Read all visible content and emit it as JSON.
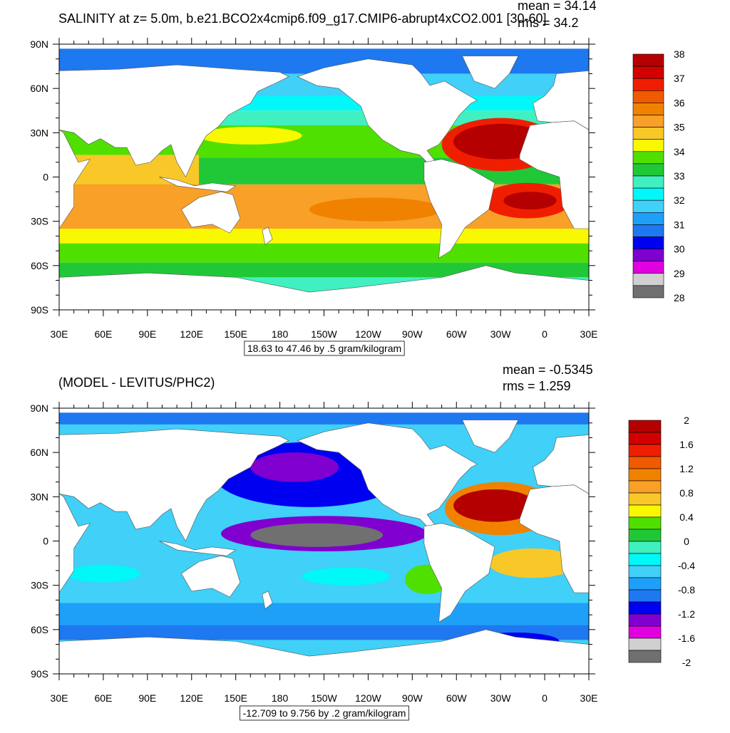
{
  "panels": [
    {
      "title": "SALINITY at z=   5.0m, b.e21.BCO2x4cmip6.f09_g17.CMIP6-abrupt4xCO2.001 [30-60]",
      "mean": "mean = 34.14",
      "rms": "rms = 34.2",
      "lat_labels": [
        "90N",
        "60N",
        "30N",
        "0",
        "30S",
        "60S",
        "90S"
      ],
      "lon_labels": [
        "30E",
        "60E",
        "90E",
        "120E",
        "150E",
        "180",
        "150W",
        "120W",
        "90W",
        "60W",
        "30W",
        "0",
        "30E"
      ],
      "contour_info": "18.63 to 47.46 by .5 gram/kilogram",
      "colorbar": {
        "labels": [
          38,
          37,
          36,
          35,
          34,
          33,
          32,
          31,
          30,
          29,
          28
        ],
        "colors": [
          "#b40000",
          "#d20000",
          "#f01e00",
          "#f05a00",
          "#f08200",
          "#f8a028",
          "#f8c828",
          "#f8f800",
          "#50e000",
          "#20c838",
          "#40f0c0",
          "#00f8f8",
          "#40d0f8",
          "#1ea0f8",
          "#1e78f0",
          "#0000f0",
          "#8000d0",
          "#e000e0",
          "#d0d0d0",
          "#707070"
        ]
      }
    },
    {
      "title": "(MODEL - LEVITUS/PHC2)",
      "mean": "mean = -0.5345",
      "rms": "rms = 1.259",
      "lat_labels": [
        "90N",
        "60N",
        "30N",
        "0",
        "30S",
        "60S",
        "90S"
      ],
      "lon_labels": [
        "30E",
        "60E",
        "90E",
        "120E",
        "150E",
        "180",
        "150W",
        "120W",
        "90W",
        "60W",
        "30W",
        "0",
        "30E"
      ],
      "contour_info": "-12.709 to 9.756 by .2 gram/kilogram",
      "colorbar": {
        "labels": [
          2,
          1.6,
          1.2,
          0.8,
          0.4,
          0,
          -0.4,
          -0.8,
          -1.2,
          -1.6,
          -2
        ],
        "colors": [
          "#b40000",
          "#d20000",
          "#f01e00",
          "#f05a00",
          "#f08200",
          "#f8a028",
          "#f8c828",
          "#f8f800",
          "#50e000",
          "#20c838",
          "#40f0c0",
          "#00f8f8",
          "#40d0f8",
          "#1ea0f8",
          "#1e78f0",
          "#0000f0",
          "#8000d0",
          "#e000e0",
          "#d0d0d0",
          "#707070"
        ]
      }
    }
  ]
}
